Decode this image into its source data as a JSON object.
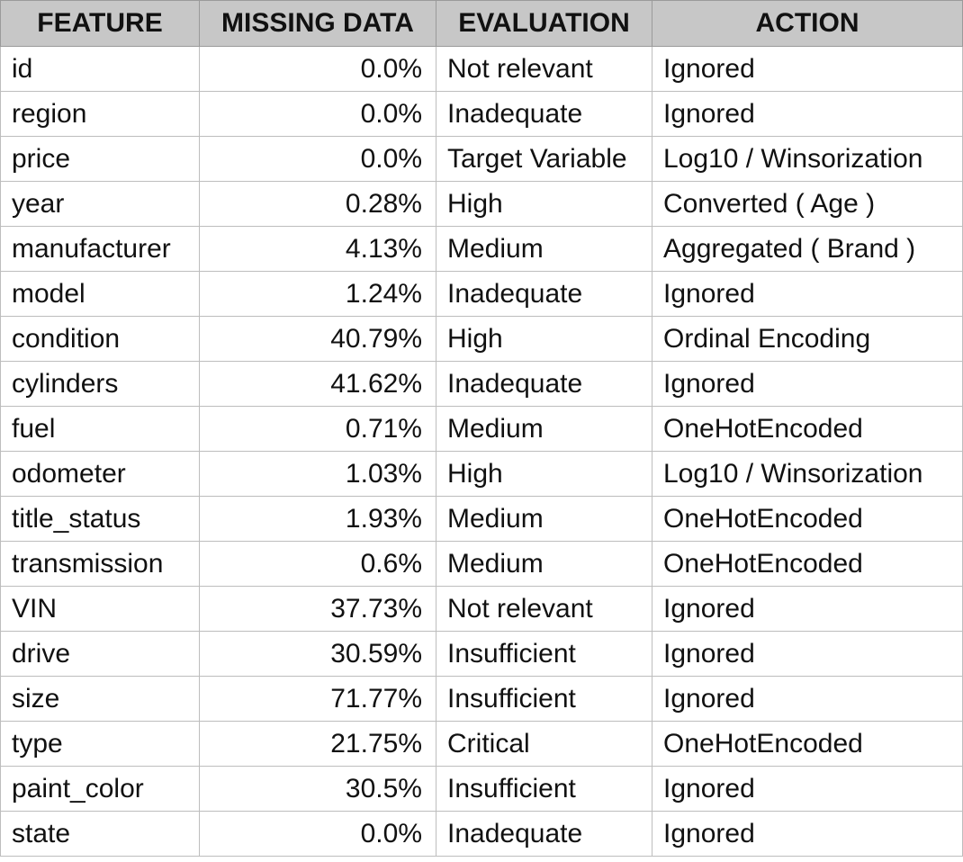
{
  "table": {
    "headers": {
      "feature": "FEATURE",
      "missing": "MISSING DATA",
      "evaluation": "EVALUATION",
      "action": "ACTION"
    },
    "rows": [
      {
        "feature": "id",
        "missing": "0.0%",
        "evaluation": "Not relevant",
        "action": "Ignored"
      },
      {
        "feature": "region",
        "missing": "0.0%",
        "evaluation": "Inadequate",
        "action": "Ignored"
      },
      {
        "feature": "price",
        "missing": "0.0%",
        "evaluation": "Target Variable",
        "action": "Log10 / Winsorization"
      },
      {
        "feature": "year",
        "missing": "0.28%",
        "evaluation": "High",
        "action": "Converted ( Age )"
      },
      {
        "feature": "manufacturer",
        "missing": "4.13%",
        "evaluation": "Medium",
        "action": "Aggregated ( Brand )"
      },
      {
        "feature": "model",
        "missing": "1.24%",
        "evaluation": "Inadequate",
        "action": "Ignored"
      },
      {
        "feature": "condition",
        "missing": "40.79%",
        "evaluation": "High",
        "action": "Ordinal Encoding"
      },
      {
        "feature": "cylinders",
        "missing": "41.62%",
        "evaluation": "Inadequate",
        "action": "Ignored"
      },
      {
        "feature": "fuel",
        "missing": "0.71%",
        "evaluation": "Medium",
        "action": "OneHotEncoded"
      },
      {
        "feature": "odometer",
        "missing": "1.03%",
        "evaluation": "High",
        "action": "Log10 / Winsorization"
      },
      {
        "feature": "title_status",
        "missing": "1.93%",
        "evaluation": "Medium",
        "action": "OneHotEncoded"
      },
      {
        "feature": "transmission",
        "missing": "0.6%",
        "evaluation": "Medium",
        "action": "OneHotEncoded"
      },
      {
        "feature": "VIN",
        "missing": "37.73%",
        "evaluation": "Not relevant",
        "action": "Ignored"
      },
      {
        "feature": "drive",
        "missing": "30.59%",
        "evaluation": "Insufficient",
        "action": "Ignored"
      },
      {
        "feature": "size",
        "missing": "71.77%",
        "evaluation": "Insufficient",
        "action": "Ignored"
      },
      {
        "feature": "type",
        "missing": "21.75%",
        "evaluation": "Critical",
        "action": "OneHotEncoded"
      },
      {
        "feature": "paint_color",
        "missing": "30.5%",
        "evaluation": "Insufficient",
        "action": "Ignored"
      },
      {
        "feature": "state",
        "missing": "0.0%",
        "evaluation": "Inadequate",
        "action": "Ignored"
      }
    ]
  },
  "colors": {
    "header_background": "#c7c7c7",
    "header_border": "#9a9a9a",
    "cell_border": "#bdbdbd",
    "text": "#111111"
  }
}
